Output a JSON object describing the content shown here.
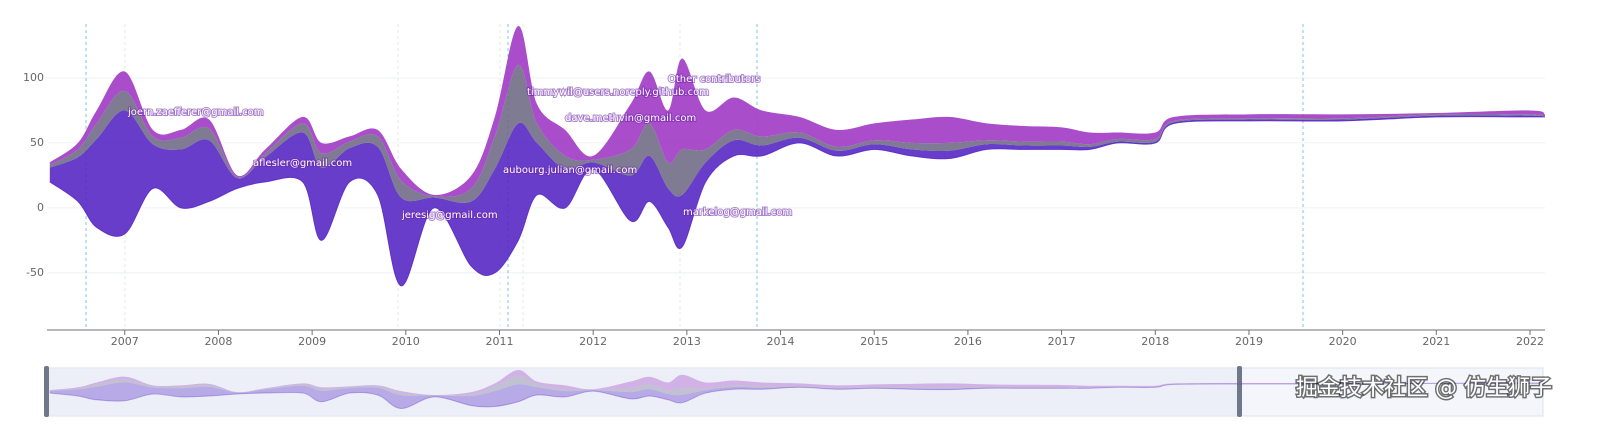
{
  "chart_data": {
    "type": "streamgraph",
    "x": [
      2006.2,
      2006.5,
      2006.7,
      2007.0,
      2007.3,
      2007.6,
      2007.9,
      2008.2,
      2008.5,
      2008.9,
      2009.1,
      2009.4,
      2009.7,
      2009.95,
      2010.3,
      2010.7,
      2010.95,
      2011.2,
      2011.4,
      2011.7,
      2012.0,
      2012.4,
      2012.6,
      2012.8,
      2012.95,
      2013.2,
      2013.5,
      2013.8,
      2014.2,
      2014.6,
      2015.0,
      2015.4,
      2015.8,
      2016.2,
      2016.6,
      2017.0,
      2017.3,
      2017.6,
      2018.0,
      2018.2,
      2019.0,
      2020.0,
      2021.0,
      2022.0,
      2022.16
    ],
    "baseline": [
      20,
      5,
      -15,
      -20,
      15,
      0,
      5,
      15,
      20,
      20,
      -25,
      20,
      10,
      -60,
      0,
      -45,
      -50,
      -25,
      10,
      0,
      30,
      -10,
      5,
      -15,
      -30,
      20,
      40,
      40,
      50,
      40,
      45,
      40,
      38,
      45,
      45,
      45,
      45,
      50,
      50,
      65,
      67,
      67,
      70,
      70,
      70
    ],
    "series": [
      {
        "color": "#5a2cc6",
        "values": [
          11,
          34,
          68,
          95,
          34,
          45,
          47,
          8,
          19,
          38,
          56,
          26,
          37,
          68,
          8,
          50,
          80,
          90,
          40,
          30,
          5,
          35,
          35,
          30,
          40,
          15,
          12,
          8,
          4,
          4,
          4,
          5,
          6,
          4,
          3,
          3,
          2,
          1,
          1,
          1,
          1,
          1,
          1,
          1,
          0
        ]
      },
      {
        "color": "#737089",
        "values": [
          2,
          6,
          12,
          15,
          6,
          9,
          9,
          1,
          3,
          7,
          11,
          5,
          8,
          13,
          1,
          10,
          25,
          45,
          15,
          10,
          2,
          20,
          25,
          20,
          35,
          10,
          8,
          7,
          4,
          3,
          3,
          5,
          6,
          3,
          3,
          3,
          2,
          2,
          2,
          1,
          1,
          1,
          1,
          1,
          1
        ]
      },
      {
        "color": "#a23ec6",
        "values": [
          2,
          5,
          10,
          15,
          5,
          6,
          7,
          1,
          3,
          5,
          8,
          4,
          5,
          9,
          1,
          10,
          15,
          30,
          15,
          20,
          3,
          35,
          40,
          40,
          70,
          30,
          25,
          20,
          12,
          13,
          13,
          18,
          20,
          13,
          12,
          11,
          9,
          5,
          5,
          3,
          3,
          3,
          1,
          3,
          1
        ]
      }
    ],
    "annotations": [
      "joern.zaefferer@gmail.com",
      "aflesler@gmail.com",
      "jeresig@gmail.com",
      "aubourg.julian@gmail.com",
      "timmywil@users.noreply.github.com",
      "dave.methvin@gmail.com",
      "Other contributors",
      "markelog@gmail.com"
    ],
    "xlim": [
      2006.17,
      2022.16
    ],
    "ylim": [
      -94,
      145
    ],
    "xticks": [
      2007,
      2008,
      2009,
      2010,
      2011,
      2012,
      2013,
      2014,
      2015,
      2016,
      2017,
      2018,
      2019,
      2020,
      2021,
      2022
    ],
    "yticks": [
      -50,
      0,
      50,
      100
    ],
    "grid": true
  },
  "watermark": "掘金技术社区 @ 仿生狮子"
}
